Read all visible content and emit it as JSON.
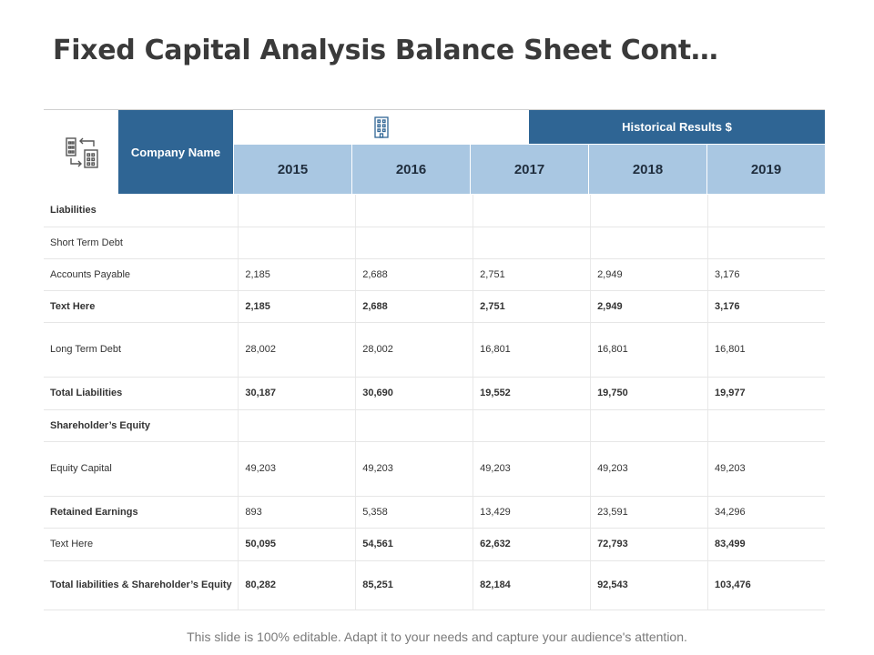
{
  "title": "Fixed Capital Analysis Balance Sheet Cont…",
  "header": {
    "company_label": "Company Name",
    "historical_label": "Historical Results $",
    "years": [
      "2015",
      "2016",
      "2017",
      "2018",
      "2019"
    ]
  },
  "rows": [
    {
      "label": "Liabilities",
      "values": [
        "",
        "",
        "",
        "",
        ""
      ]
    },
    {
      "label": "Short Term Debt",
      "values": [
        "",
        "",
        "",
        "",
        ""
      ]
    },
    {
      "label": "Accounts Payable",
      "values": [
        "2,185",
        "2,688",
        "2,751",
        "2,949",
        "3,176"
      ]
    },
    {
      "label": "Text Here",
      "values": [
        "2,185",
        "2,688",
        "2,751",
        "2,949",
        "3,176"
      ]
    },
    {
      "label": "Long Term Debt",
      "values": [
        "28,002",
        "28,002",
        "16,801",
        "16,801",
        "16,801"
      ]
    },
    {
      "label": "Total Liabilities",
      "values": [
        "30,187",
        "30,690",
        "19,552",
        "19,750",
        "19,977"
      ]
    },
    {
      "label": "Shareholder’s Equity",
      "values": [
        "",
        "",
        "",
        "",
        ""
      ]
    },
    {
      "label": "Equity Capital",
      "values": [
        "49,203",
        "49,203",
        "49,203",
        "49,203",
        "49,203"
      ]
    },
    {
      "label": "Retained Earnings",
      "values": [
        "893",
        "5,358",
        "13,429",
        "23,591",
        "34,296"
      ]
    },
    {
      "label": "Text Here",
      "values": [
        "50,095",
        "54,561",
        "62,632",
        "72,793",
        "83,499"
      ]
    },
    {
      "label": "Total liabilities & Shareholder’s Equity",
      "values": [
        "80,282",
        "85,251",
        "82,184",
        "92,543",
        "103,476"
      ]
    }
  ],
  "footer": "This slide is 100% editable. Adapt it to your needs and capture your audience's attention.",
  "icons": {
    "corner": "buildings-exchange-icon",
    "header": "office-building-icon"
  },
  "colors": {
    "header_dark": "#2f6594",
    "header_light": "#a9c7e2"
  }
}
